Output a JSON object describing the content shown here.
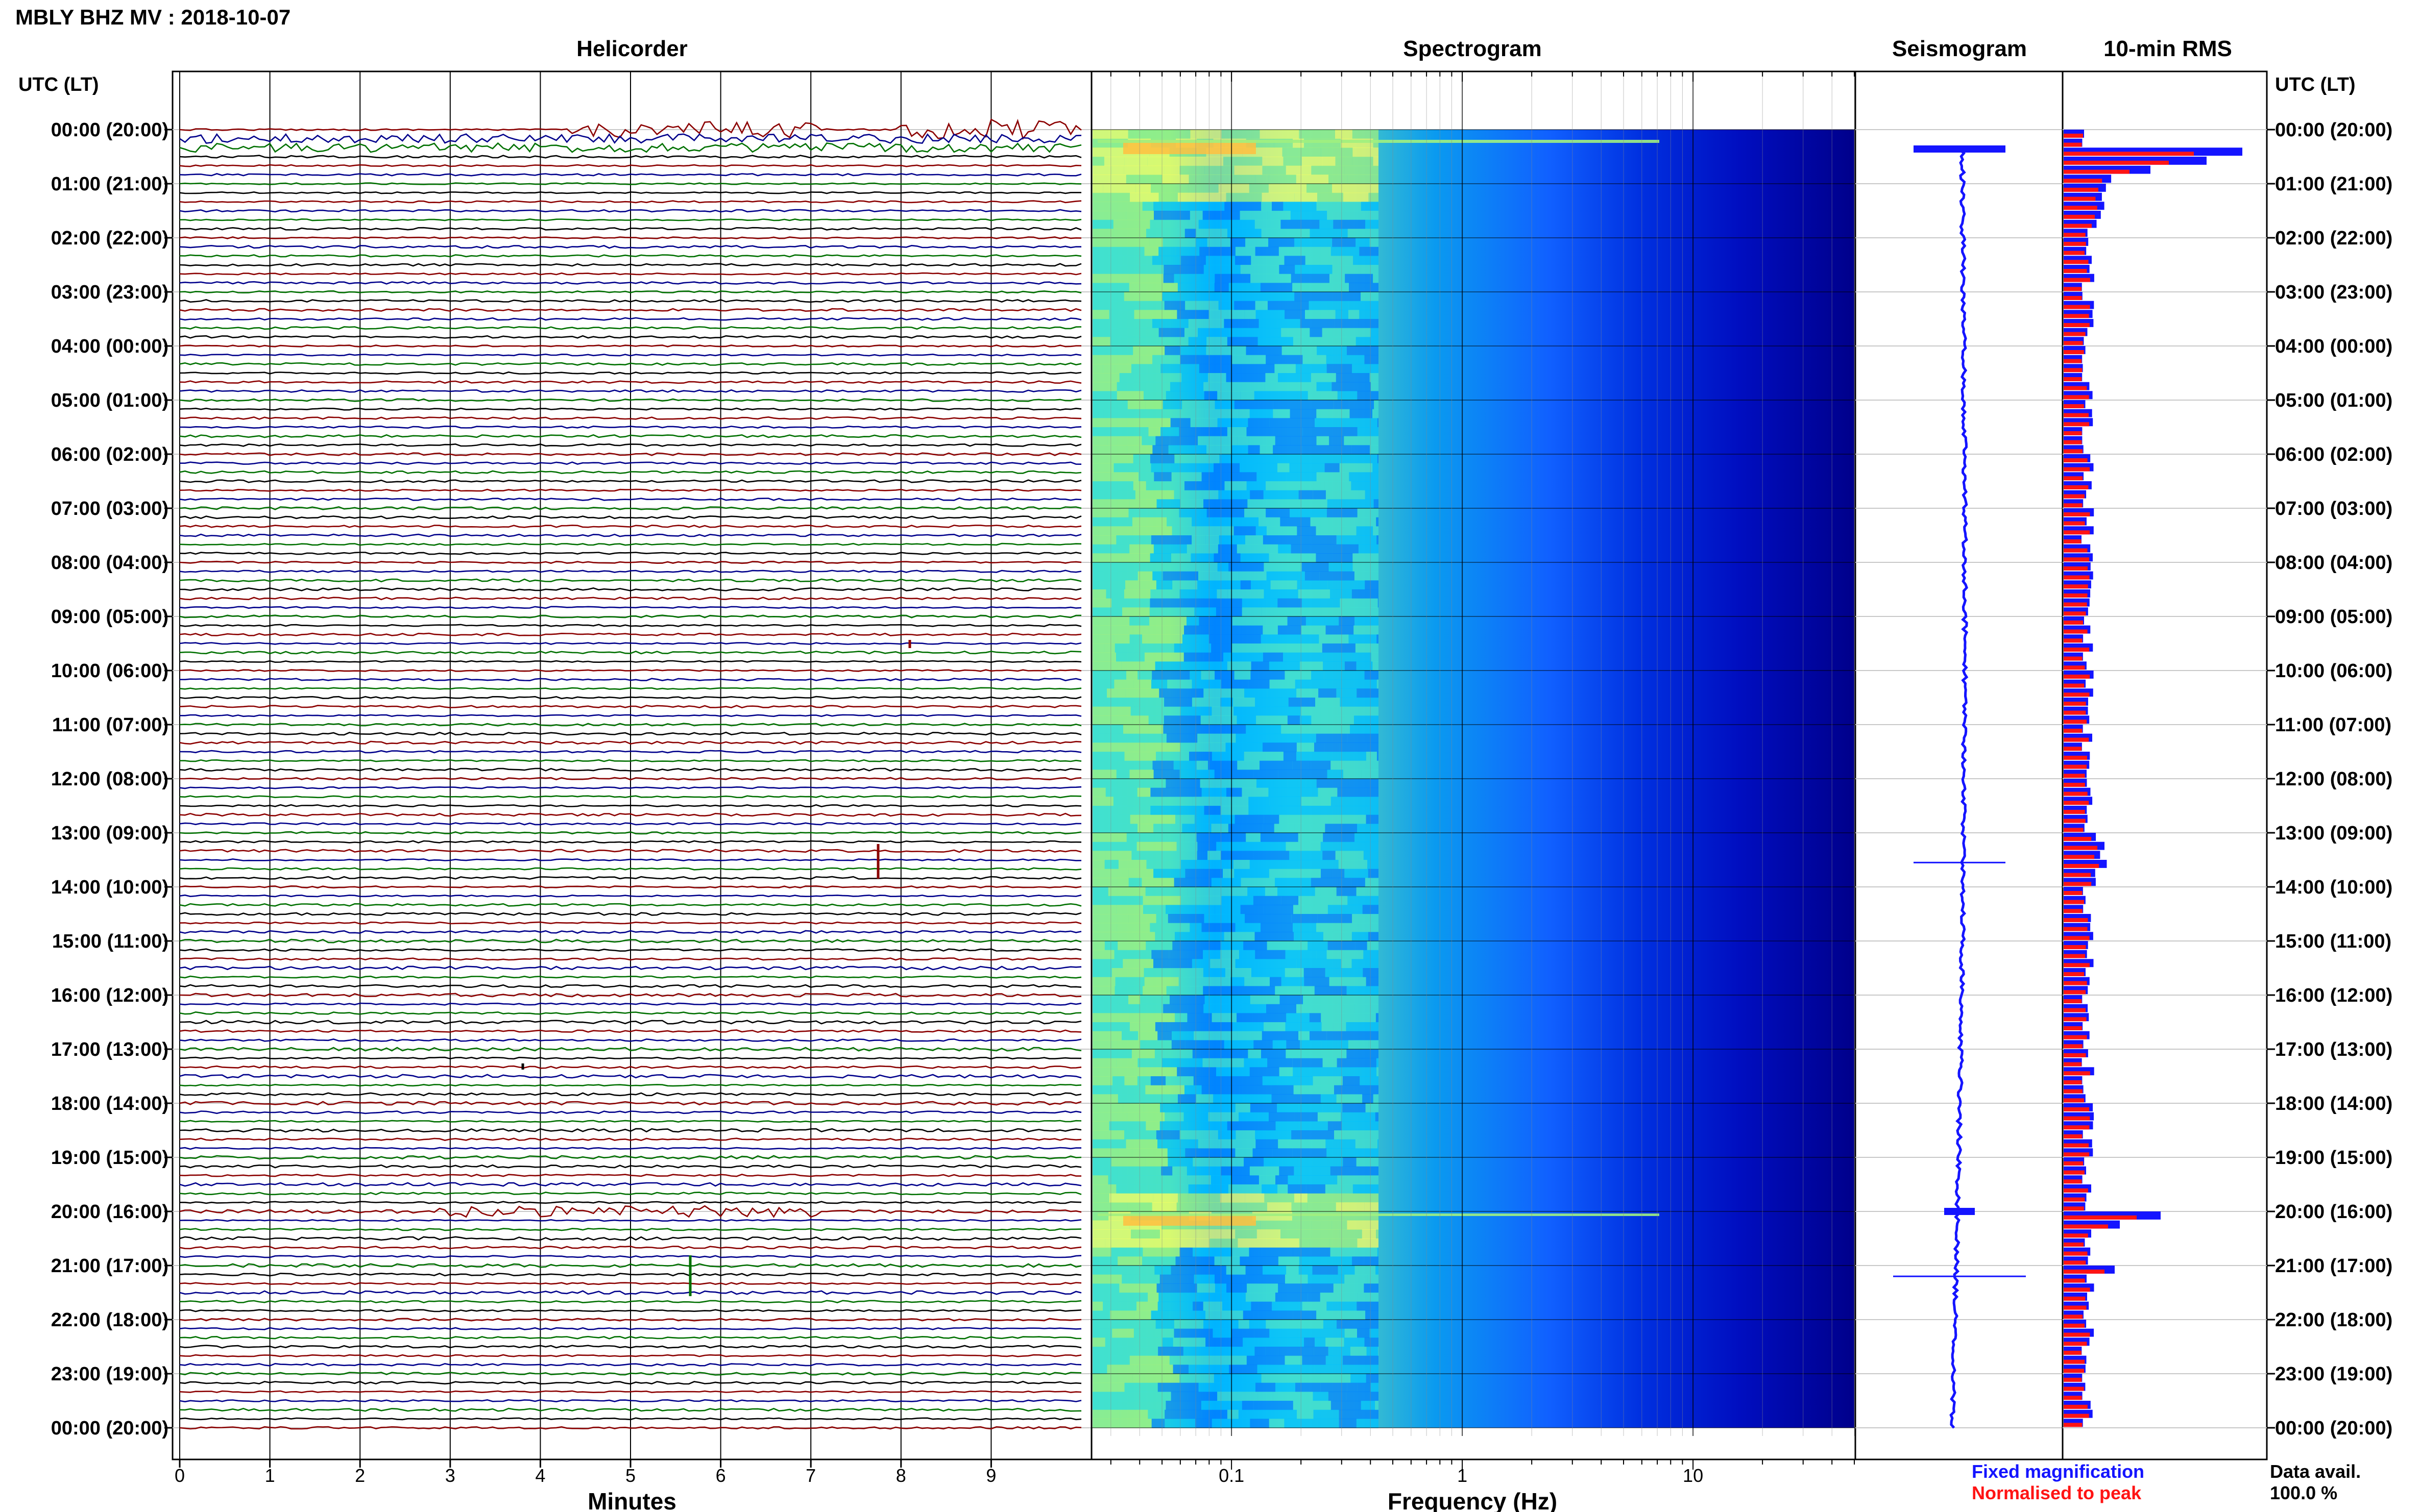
{
  "header": {
    "title": "MBLY BHZ MV : 2018-10-07"
  },
  "panels": {
    "helicorder": "Helicorder",
    "spectrogram": "Spectrogram",
    "seismogram": "Seismogram",
    "rms": "10-min RMS"
  },
  "axes": {
    "time_axis_title": "UTC (LT)",
    "minutes_label": "Minutes",
    "frequency_label": "Frequency (Hz)"
  },
  "legend": {
    "fixed": "Fixed magnification",
    "normalised": "Normalised to peak",
    "fixed_color": "#1414ff",
    "normalised_color": "#ff1414"
  },
  "data_availability": {
    "label": "Data avail.",
    "value": "100.0 %"
  },
  "chart_data": [
    {
      "type": "line",
      "title": "Helicorder",
      "xlabel": "Minutes",
      "ylabel": "UTC (LT)",
      "x_ticks": [
        "0",
        "1",
        "2",
        "3",
        "4",
        "5",
        "6",
        "7",
        "8",
        "9"
      ],
      "xlim": [
        0,
        10
      ],
      "y_ticks": [
        "00:00 (20:00)",
        "01:00 (21:00)",
        "02:00 (22:00)",
        "03:00 (23:00)",
        "04:00 (00:00)",
        "05:00 (01:00)",
        "06:00 (02:00)",
        "07:00 (03:00)",
        "08:00 (04:00)",
        "09:00 (05:00)",
        "10:00 (06:00)",
        "11:00 (07:00)",
        "12:00 (08:00)",
        "13:00 (09:00)",
        "14:00 (10:00)",
        "15:00 (11:00)",
        "16:00 (12:00)",
        "17:00 (13:00)",
        "18:00 (14:00)",
        "19:00 (15:00)",
        "20:00 (16:00)",
        "21:00 (17:00)",
        "22:00 (18:00)",
        "23:00 (19:00)",
        "00:00 (20:00)"
      ],
      "trace_colors": [
        "#8b0000",
        "#00008b",
        "#007000",
        "#000000"
      ],
      "lines_per_hour": 6,
      "grid": true
    },
    {
      "type": "heatmap",
      "title": "Spectrogram",
      "xlabel": "Frequency (Hz)",
      "x_scale": "log",
      "x_ticks": [
        "0.1",
        "1",
        "10"
      ],
      "xlim": [
        0.025,
        50
      ],
      "colormap": [
        "#00008b",
        "#0000ff",
        "#0080ff",
        "#00c0ff",
        "#40e0d0",
        "#a0f080",
        "#ffff60",
        "#ffc040",
        "#ff8020"
      ]
    },
    {
      "type": "line",
      "title": "Seismogram",
      "color": "#1414ff"
    },
    {
      "type": "bar",
      "title": "10-min RMS",
      "orientation": "horizontal",
      "bins_per_day": 144,
      "series": [
        {
          "name": "Fixed magnification",
          "color": "#1414ff"
        },
        {
          "name": "Normalised to peak",
          "color": "#ff1414"
        }
      ],
      "y_ticks": [
        "00:00 (20:00)",
        "01:00 (21:00)",
        "02:00 (22:00)",
        "03:00 (23:00)",
        "04:00 (00:00)",
        "05:00 (01:00)",
        "06:00 (02:00)",
        "07:00 (03:00)",
        "08:00 (04:00)",
        "09:00 (05:00)",
        "10:00 (06:00)",
        "11:00 (07:00)",
        "12:00 (08:00)",
        "13:00 (09:00)",
        "14:00 (10:00)",
        "15:00 (11:00)",
        "16:00 (12:00)",
        "17:00 (13:00)",
        "18:00 (14:00)",
        "19:00 (15:00)",
        "20:00 (16:00)",
        "21:00 (17:00)",
        "22:00 (18:00)",
        "23:00 (19:00)",
        "00:00 (20:00)"
      ]
    }
  ]
}
